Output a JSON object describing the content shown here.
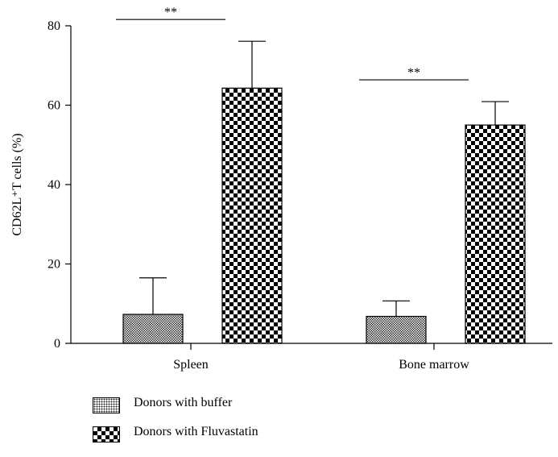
{
  "chart_data": {
    "type": "bar",
    "ylabel": "CD62L⁺T cells (%)",
    "ylim": [
      0,
      80
    ],
    "yticks": [
      0,
      20,
      40,
      60,
      80
    ],
    "categories": [
      "Spleen",
      "Bone marrow"
    ],
    "series": [
      {
        "name": "Donors with buffer",
        "values": [
          7.3,
          6.8
        ],
        "errors": [
          9.2,
          3.9
        ],
        "pattern": "fine-dots"
      },
      {
        "name": "Donors with Fluvastatin",
        "values": [
          64.3,
          55.0
        ],
        "errors": [
          11.8,
          5.9
        ],
        "pattern": "checkerboard"
      }
    ],
    "significance": [
      {
        "category": "Spleen",
        "label": "**"
      },
      {
        "category": "Bone marrow",
        "label": "**"
      }
    ],
    "legend_position": "bottom-left",
    "grid": false
  }
}
